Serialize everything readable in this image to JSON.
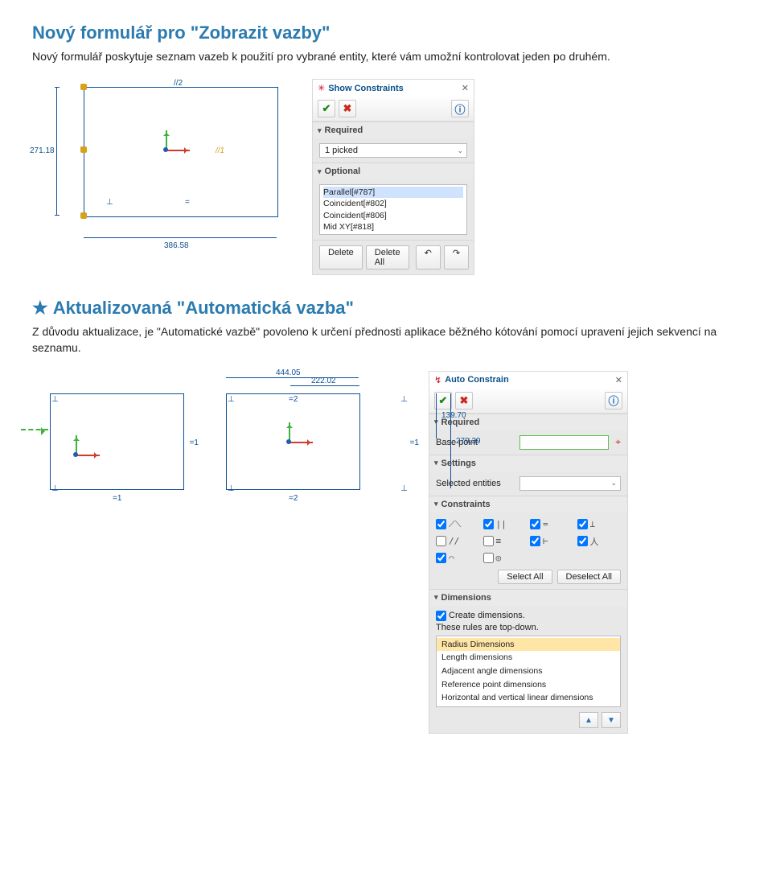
{
  "page": {
    "heading1": "Nový formulář pro \"Zobrazit vazby\"",
    "para1": "Nový formulář poskytuje seznam vazeb k použití pro vybrané entity, které vám umožní kontrolovat jeden po druhém.",
    "heading2": "Aktualizovaná \"Automatická vazba\"",
    "para2": "Z důvodu aktualizace, je \"Automatické vazbě\" povoleno k určení přednosti aplikace běžného kótování pomocí upravení jejich sekvencí na seznamu."
  },
  "sketch1": {
    "dim_left": "271.18",
    "dim_bottom": "386.58",
    "top_label": "//2",
    "mid_right": "//1",
    "perp": "⊥",
    "eq": "="
  },
  "dlg1": {
    "title": "Show Constraints",
    "required": "Required",
    "picked": "1 picked",
    "optional": "Optional",
    "items": [
      "Parallel[#787]",
      "Coincident[#802]",
      "Coincident[#806]",
      "Mid XY[#818]"
    ],
    "delete": "Delete",
    "delete_all": "Delete All"
  },
  "sketch2": {
    "dim_top": "444.05",
    "dim_half": "222.02",
    "dim_h1": "139.70",
    "dim_h2": "279.39",
    "eq1a": "=1",
    "eq1b": "=1",
    "eq2a": "=2",
    "eq2b": "=2",
    "perp": "⊥"
  },
  "dlg2": {
    "title": "Auto Constrain",
    "required": "Required",
    "basepoint_label": "Base point",
    "settings": "Settings",
    "selent_label": "Selected entities",
    "constraints": "Constraints",
    "cons_syms": [
      "⟋⟍",
      "||",
      "=",
      "⊥",
      "//",
      "≡",
      "⊢",
      "人",
      "⌒",
      "◎"
    ],
    "cons_checked": [
      true,
      true,
      true,
      true,
      false,
      false,
      true,
      true,
      true,
      false
    ],
    "select_all": "Select All",
    "deselect_all": "Deselect All",
    "dimensions": "Dimensions",
    "create_dims": "Create dimensions.",
    "topdown": "These rules are top-down.",
    "dim_list": [
      "Radius Dimensions",
      "Length dimensions",
      "Adjacent angle dimensions",
      "Reference point dimensions",
      "Horizontal and vertical linear dimensions"
    ]
  }
}
